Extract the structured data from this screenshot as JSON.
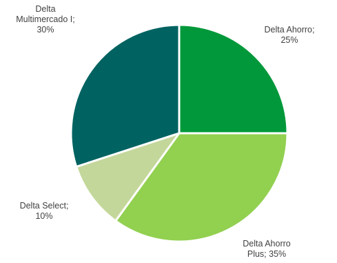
{
  "chart_data": {
    "type": "pie",
    "start_angle_deg": 0,
    "direction": "clockwise",
    "slices": [
      {
        "name": "Delta Ahorro",
        "value": 25,
        "value_label": "25%",
        "label_lines": [
          "Delta Ahorro;",
          "25%"
        ],
        "color": "#00983a"
      },
      {
        "name": "Delta Ahorro Plus",
        "value": 35,
        "value_label": "35%",
        "label_lines": [
          "Delta Ahorro",
          "Plus; 35%"
        ],
        "color": "#92d050"
      },
      {
        "name": "Delta Select",
        "value": 10,
        "value_label": "10%",
        "label_lines": [
          "Delta Select;",
          "10%"
        ],
        "color": "#c4d79b"
      },
      {
        "name": "Delta Multimercado I",
        "value": 30,
        "value_label": "30%",
        "label_lines": [
          "Delta",
          "Multimercado I;",
          "30%"
        ],
        "color": "#006361"
      }
    ],
    "slice_border_color": "#ffffff",
    "label_color": "#404040"
  }
}
